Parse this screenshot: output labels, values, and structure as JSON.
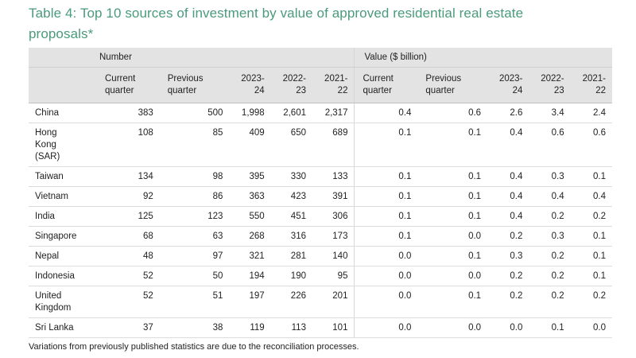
{
  "title": "Table 4: Top 10 sources of investment by value of approved residential real estate proposals*",
  "header": {
    "group_number": "Number",
    "group_value": "Value ($ billion)",
    "columns": [
      [
        "Current",
        "quarter"
      ],
      [
        "Previous",
        "quarter"
      ],
      [
        "2023-",
        "24"
      ],
      [
        "2022-",
        "23"
      ],
      [
        "2021-",
        "22"
      ],
      [
        "Current",
        "quarter"
      ],
      [
        "Previous",
        "quarter"
      ],
      [
        "2023-",
        "24"
      ],
      [
        "2022-",
        "23"
      ],
      [
        "2021-",
        "22"
      ]
    ]
  },
  "rows": [
    {
      "country": [
        "China"
      ],
      "values": [
        "383",
        "500",
        "1,998",
        "2,601",
        "2,317",
        "0.4",
        "0.6",
        "2.6",
        "3.4",
        "2.4"
      ]
    },
    {
      "country": [
        "Hong",
        "Kong",
        "(SAR)"
      ],
      "values": [
        "108",
        "85",
        "409",
        "650",
        "689",
        "0.1",
        "0.1",
        "0.4",
        "0.6",
        "0.6"
      ]
    },
    {
      "country": [
        "Taiwan"
      ],
      "values": [
        "134",
        "98",
        "395",
        "330",
        "133",
        "0.1",
        "0.1",
        "0.4",
        "0.3",
        "0.1"
      ]
    },
    {
      "country": [
        "Vietnam"
      ],
      "values": [
        "92",
        "86",
        "363",
        "423",
        "391",
        "0.1",
        "0.1",
        "0.4",
        "0.4",
        "0.4"
      ]
    },
    {
      "country": [
        "India"
      ],
      "values": [
        "125",
        "123",
        "550",
        "451",
        "306",
        "0.1",
        "0.1",
        "0.4",
        "0.2",
        "0.2"
      ]
    },
    {
      "country": [
        "Singapore"
      ],
      "values": [
        "68",
        "63",
        "268",
        "316",
        "173",
        "0.1",
        "0.0",
        "0.2",
        "0.3",
        "0.1"
      ]
    },
    {
      "country": [
        "Nepal"
      ],
      "values": [
        "48",
        "97",
        "321",
        "281",
        "140",
        "0.0",
        "0.1",
        "0.3",
        "0.2",
        "0.1"
      ]
    },
    {
      "country": [
        "Indonesia"
      ],
      "values": [
        "52",
        "50",
        "194",
        "190",
        "95",
        "0.0",
        "0.0",
        "0.2",
        "0.2",
        "0.1"
      ]
    },
    {
      "country": [
        "United",
        "Kingdom"
      ],
      "values": [
        "52",
        "51",
        "197",
        "226",
        "201",
        "0.0",
        "0.1",
        "0.2",
        "0.2",
        "0.2"
      ]
    },
    {
      "country": [
        "Sri Lanka"
      ],
      "values": [
        "37",
        "38",
        "119",
        "113",
        "101",
        "0.0",
        "0.0",
        "0.0",
        "0.1",
        "0.0"
      ]
    }
  ],
  "footnote": "Variations from previously published statistics are due to the reconciliation processes."
}
